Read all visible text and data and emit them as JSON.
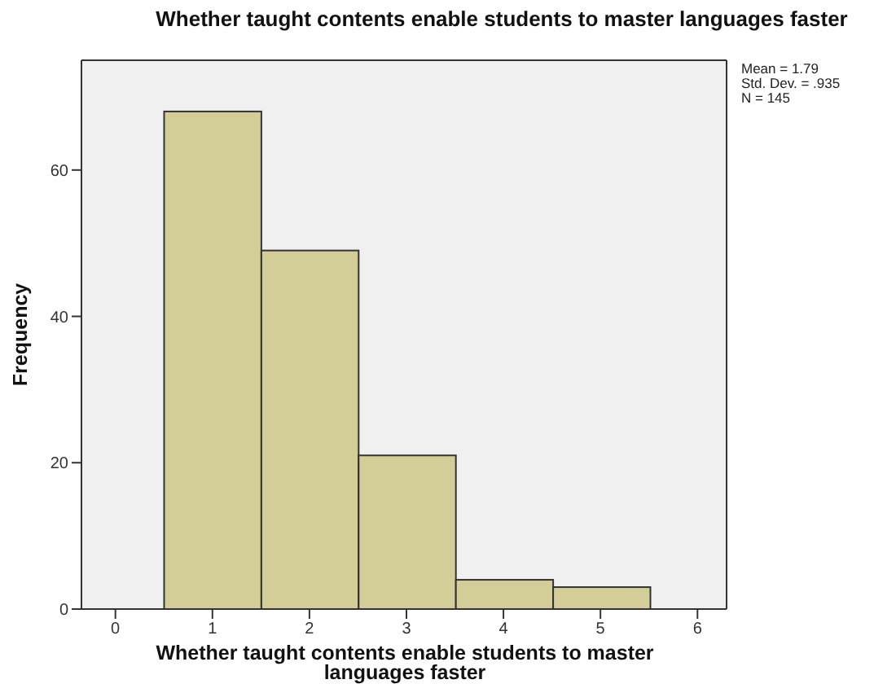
{
  "chart_data": {
    "type": "histogram",
    "title": "Whether taught contents enable students to master languages faster",
    "xlabel": "Whether taught contents enable students to master languages faster",
    "ylabel": "Frequency",
    "bins": [
      0.5,
      1.5,
      2.5,
      3.5,
      4.5,
      5.5
    ],
    "values": [
      68,
      49,
      21,
      4,
      3
    ],
    "color": "#d3ce97",
    "xlim": [
      -0.35,
      6.3
    ],
    "xticks": [
      0,
      1,
      2,
      3,
      4,
      5,
      6
    ],
    "ylim": [
      0,
      75
    ],
    "yticks": [
      0,
      20,
      40,
      60
    ],
    "annotations": [
      "Mean = 1.79",
      "Std. Dev. = .935",
      "N = 145"
    ]
  }
}
